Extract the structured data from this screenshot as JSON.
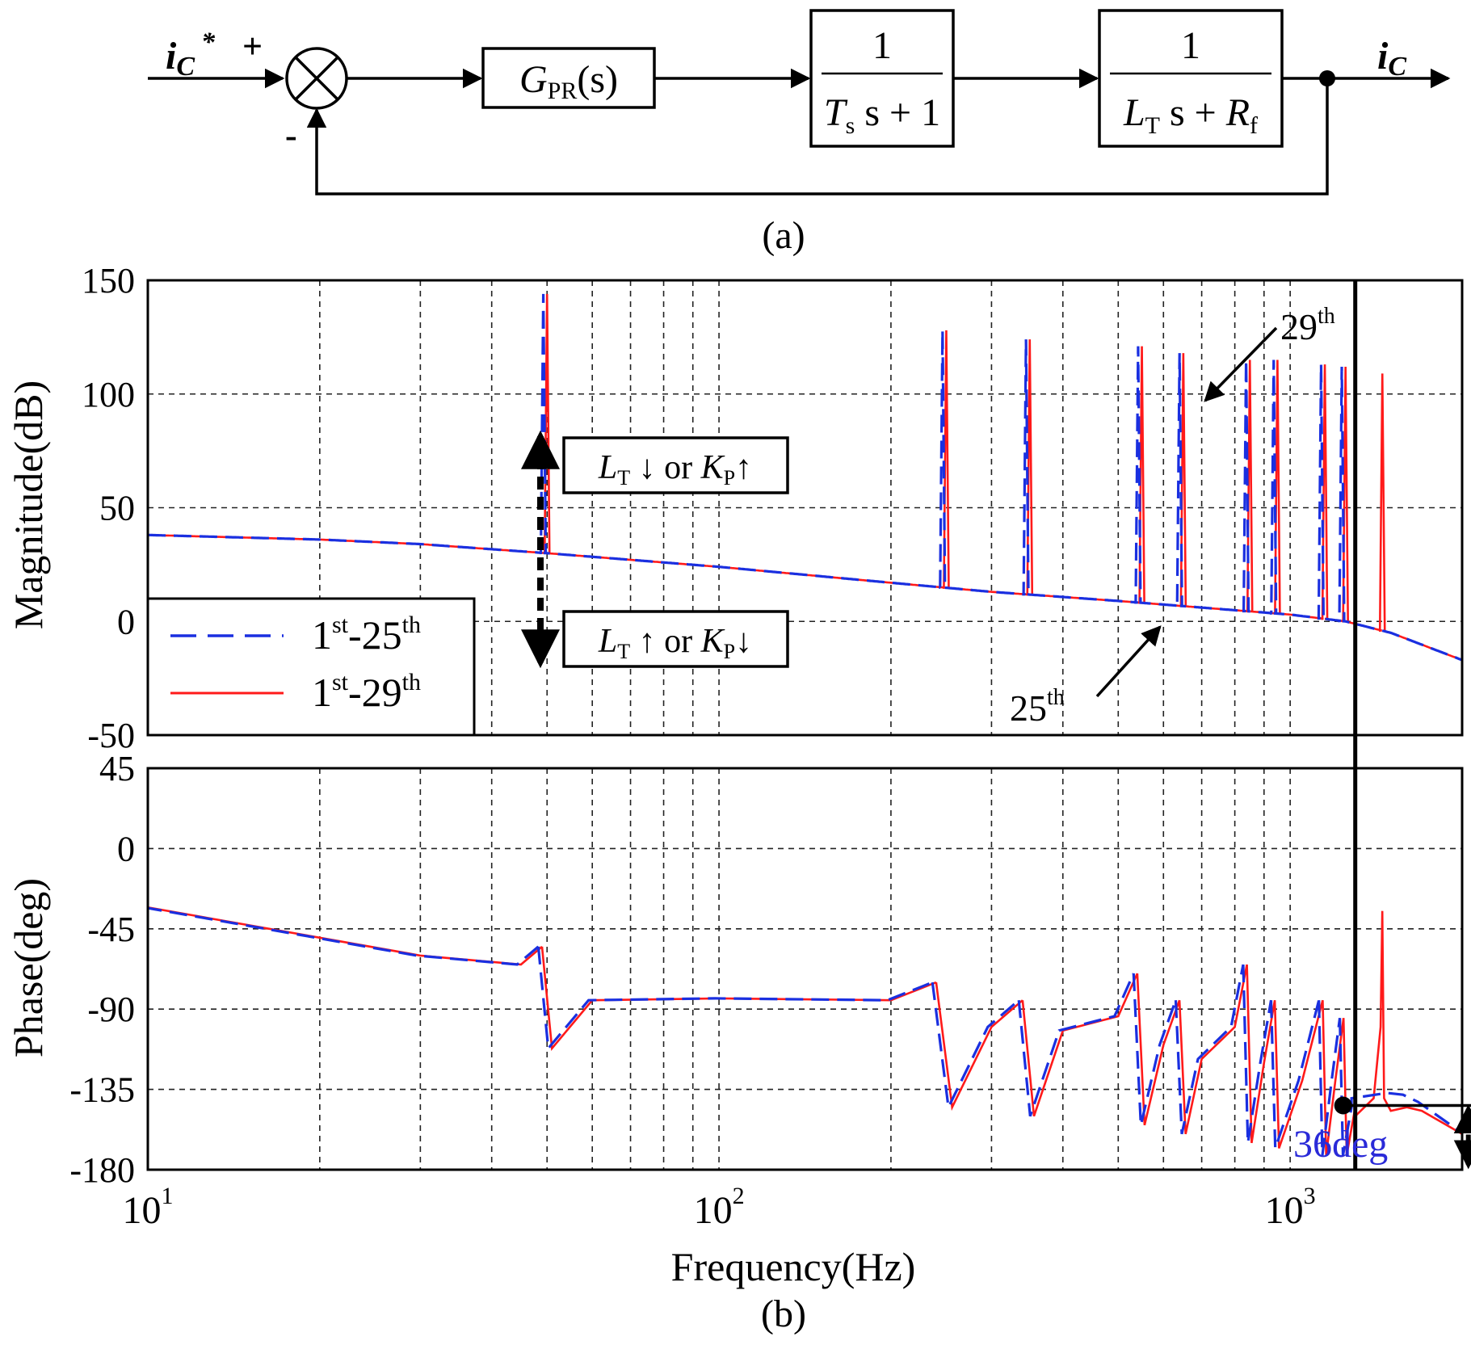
{
  "block_diagram": {
    "input_symbol": "i",
    "input_sub": "C",
    "input_sup": "*",
    "plus_sign": "+",
    "minus_sign": "-",
    "controller": {
      "name": "G",
      "sub": "PR",
      "arg": "(s)"
    },
    "delay_block": {
      "num": "1",
      "var": "T",
      "sub": "s",
      "rest": " s + 1"
    },
    "plant_block": {
      "num": "1",
      "var": "L",
      "sub": "T",
      "mid": " s + ",
      "var2": "R",
      "sub2": "f"
    },
    "output_symbol": "i",
    "output_sub": "C",
    "caption": "(a)"
  },
  "chart_data": [
    {
      "id": "magnitude",
      "type": "line",
      "x_scale": "log",
      "xlim": [
        10,
        2000
      ],
      "ylim": [
        -50,
        150
      ],
      "ylabel": "Magnitude(dB)",
      "yticks": [
        "150",
        "100",
        "50",
        "0",
        "-50"
      ],
      "ytick_values": [
        150,
        100,
        50,
        0,
        -50
      ],
      "baseline": {
        "x": [
          10,
          20,
          30,
          50,
          100,
          200,
          300,
          500,
          1000,
          1250,
          1500,
          2000
        ],
        "y": [
          38,
          36,
          34,
          30,
          24,
          17,
          13,
          9,
          3,
          0,
          -5,
          -17
        ]
      },
      "resonances_25": {
        "freq": [
          50,
          250,
          350,
          550,
          650,
          850,
          950,
          1150,
          1250
        ],
        "peak": [
          144,
          128,
          124,
          121,
          118,
          115,
          115,
          113,
          112
        ]
      },
      "resonances_29": {
        "freq": [
          50,
          250,
          350,
          550,
          650,
          850,
          950,
          1150,
          1250,
          1450
        ],
        "peak": [
          144,
          128,
          124,
          121,
          118,
          115,
          115,
          113,
          112,
          109
        ]
      },
      "legend": [
        "1st-25th",
        "1st-29th"
      ],
      "legend_text": [
        {
          "base": "1",
          "sup1": "st",
          "mid": "-25",
          "sup2": "th"
        },
        {
          "base": "1",
          "sup1": "st",
          "mid": "-29",
          "sup2": "th"
        }
      ],
      "annotations": {
        "box_up": {
          "var": "L",
          "sub": "T",
          "arrow1": " ↓ or ",
          "var2": "K",
          "sub2": "P",
          "arrow2": "↑"
        },
        "box_down": {
          "var": "L",
          "sub": "T",
          "arrow1": " ↑ or ",
          "var2": "K",
          "sub2": "P",
          "arrow2": "↓"
        },
        "label_29": {
          "base": "29",
          "sup": "th"
        },
        "label_25": {
          "base": "25",
          "sup": "th"
        }
      },
      "crossover_hz": 1300
    },
    {
      "id": "phase",
      "type": "line",
      "x_scale": "log",
      "xlim": [
        10,
        2000
      ],
      "ylim": [
        -180,
        45
      ],
      "ylabel": "Phase(deg)",
      "yticks": [
        "45",
        "0",
        "-45",
        "-90",
        "-135",
        "-180"
      ],
      "ytick_values": [
        45,
        0,
        -45,
        -90,
        -135,
        -180
      ],
      "baseline": {
        "x": [
          10,
          20,
          30,
          45,
          49
        ],
        "y": [
          -33,
          -50,
          -60,
          -65,
          -55
        ]
      },
      "segments": [
        {
          "x": [
            51,
            60,
            100,
            200,
            240
          ],
          "y": [
            -112,
            -85,
            -84,
            -85,
            -75
          ]
        },
        {
          "x": [
            256,
            300,
            340
          ],
          "y": [
            -145,
            -100,
            -85
          ]
        },
        {
          "x": [
            356,
            400,
            500,
            540
          ],
          "y": [
            -150,
            -102,
            -94,
            -70
          ]
        },
        {
          "x": [
            556,
            600,
            640
          ],
          "y": [
            -155,
            -110,
            -85
          ]
        },
        {
          "x": [
            656,
            700,
            800,
            840
          ],
          "y": [
            -160,
            -118,
            -100,
            -65
          ]
        },
        {
          "x": [
            856,
            900,
            940
          ],
          "y": [
            -165,
            -120,
            -85
          ]
        },
        {
          "x": [
            956,
            1050,
            1140
          ],
          "y": [
            -168,
            -130,
            -85
          ]
        },
        {
          "x": [
            1156,
            1200,
            1240
          ],
          "y": [
            -172,
            -130,
            -95
          ]
        },
        {
          "x": [
            1256,
            1300
          ],
          "y": [
            -172,
            -145
          ]
        }
      ],
      "series29_extra": {
        "x": [
          1300,
          1400,
          1440,
          1450,
          1460,
          1500,
          1600,
          1700,
          2000
        ],
        "y": [
          -150,
          -140,
          -100,
          -35,
          -140,
          -147,
          -145,
          -147,
          -160
        ]
      },
      "series25_tail": {
        "x": [
          1300,
          1500,
          1600,
          1700,
          2000
        ],
        "y": [
          -140,
          -137,
          -138,
          -142,
          -158
        ]
      },
      "phase_margin_marker": {
        "x": 1300,
        "y": -144
      },
      "phase_margin_label": "36deg",
      "xticks": [
        {
          "base": "10",
          "exp": "1",
          "value": 10
        },
        {
          "base": "10",
          "exp": "2",
          "value": 100
        },
        {
          "base": "10",
          "exp": "3",
          "value": 1000
        }
      ],
      "xlabel": "Frequency(Hz)"
    }
  ],
  "caption_b": "(b)",
  "colors": {
    "series_a": "#1a2fe0",
    "series_b": "#ff1a1a",
    "label_blue": "#2a2ad8"
  }
}
